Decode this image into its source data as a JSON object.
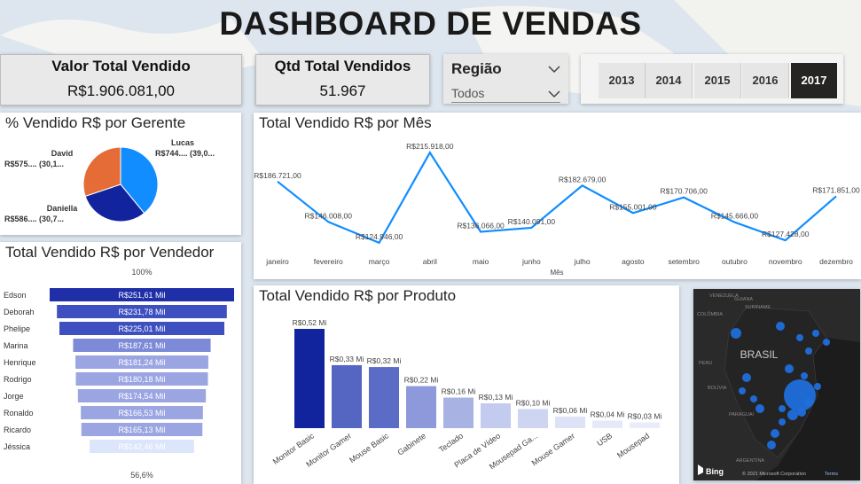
{
  "header": {
    "title": "DASHBOARD DE VENDAS"
  },
  "kpis": {
    "total_sold_label": "Valor Total Vendido",
    "total_sold_value": "R$1.906.081,00",
    "qty_label": "Qtd Total Vendidos",
    "qty_value": "51.967"
  },
  "region_filter": {
    "label": "Região",
    "value": "Todos"
  },
  "year_filter": {
    "years": [
      "2013",
      "2014",
      "2015",
      "2016",
      "2017"
    ],
    "selected": "2017"
  },
  "colors": {
    "line": "#118dff",
    "pie_lucas": "#118dff",
    "pie_daniella": "#12239e",
    "pie_david": "#e66c37",
    "funnel_top": "#1f2fa8",
    "bar_top": "#12239e",
    "map_bg": "#1c1c1c",
    "map_dot": "#1f6fdc"
  },
  "pie_chart": {
    "title": "% Vendido R$ por Gerente",
    "slice_labels": [
      {
        "name": "Lucas",
        "detail": "R$744.... (39,0...",
        "color_key": "pie_lucas"
      },
      {
        "name": "Daniella",
        "detail": "R$586.... (30,7...",
        "color_key": "pie_daniella"
      },
      {
        "name": "David",
        "detail": "R$575.... (30,1...",
        "color_key": "pie_david"
      }
    ]
  },
  "line_chart": {
    "title": "Total Vendido R$ por Mês",
    "x_axis_title": "Mês",
    "point_labels": [
      "R$186.721,00",
      "R$146.008,00",
      "R$124.946,00",
      "R$215.918,00",
      "R$136.066,00",
      "R$140.091,00",
      "R$182.679,00",
      "R$155.001,00",
      "R$170.706,00",
      "R$145.666,00",
      "R$127.428,00",
      "R$171.851,00"
    ]
  },
  "funnel_chart": {
    "title": "Total Vendido R$ por Vendedor",
    "top_label": "100%",
    "bottom_label": "56,6%",
    "value_labels": [
      "R$251,61 Mil",
      "R$231,78 Mil",
      "R$225,01 Mil",
      "R$187,61 Mil",
      "R$181,24 Mil",
      "R$180,18 Mil",
      "R$174,54 Mil",
      "R$166,53 Mil",
      "R$165,13 Mil",
      "R$142,46 Mil"
    ]
  },
  "bar_chart": {
    "title": "Total Vendido R$ por Produto",
    "value_labels": [
      "R$0,52 Mi",
      "R$0,33 Mi",
      "R$0,32 Mi",
      "R$0,22 Mi",
      "R$0,16 Mi",
      "R$0,13 Mi",
      "R$0,10 Mi",
      "R$0,06 Mi",
      "R$0,04 Mi",
      "R$0,03 Mi"
    ]
  },
  "map": {
    "country_label": "BRASIL",
    "labels": [
      "GUIANA",
      "SURINAME",
      "VENEZUELA",
      "COLÔMBIA",
      "PERU",
      "BOLÍVIA",
      "PARAGUAI",
      "ARGENTINA"
    ],
    "attribution": "© 2021 Microsoft Corporation",
    "terms": "Terms",
    "bing": "Bing"
  },
  "chart_data": [
    {
      "type": "pie",
      "title": "% Vendido R$ por Gerente",
      "categories": [
        "Lucas",
        "Daniella",
        "David"
      ],
      "values": [
        39.0,
        30.7,
        30.1
      ]
    },
    {
      "type": "line",
      "title": "Total Vendido R$ por Mês",
      "xlabel": "Mês",
      "categories": [
        "janeiro",
        "fevereiro",
        "março",
        "abril",
        "maio",
        "junho",
        "julho",
        "agosto",
        "setembro",
        "outubro",
        "novembro",
        "dezembro"
      ],
      "values": [
        186721,
        146008,
        124946,
        215918,
        136066,
        140091,
        182679,
        155001,
        170706,
        145666,
        127428,
        171851
      ],
      "ylim": [
        115000,
        225000
      ]
    },
    {
      "type": "bar",
      "title": "Total Vendido R$ por Vendedor",
      "categories": [
        "Edson",
        "Deborah",
        "Phelipe",
        "Marina",
        "Henrique",
        "Rodrigo",
        "Jorge",
        "Ronaldo",
        "Ricardo",
        "Jéssica"
      ],
      "values": [
        251.61,
        231.78,
        225.01,
        187.61,
        181.24,
        180.18,
        174.54,
        166.53,
        165.13,
        142.46
      ]
    },
    {
      "type": "bar",
      "title": "Total Vendido R$ por Produto",
      "categories": [
        "Monitor Basic",
        "Monitor Gamer",
        "Mouse Basic",
        "Gabinete",
        "Teclado",
        "Placa de Vídeo",
        "Mousepad Ga...",
        "Mouse Gamer",
        "USB",
        "Mousepad"
      ],
      "values": [
        0.52,
        0.33,
        0.32,
        0.22,
        0.16,
        0.13,
        0.1,
        0.06,
        0.04,
        0.03
      ],
      "ylim": [
        0,
        0.52
      ]
    }
  ]
}
